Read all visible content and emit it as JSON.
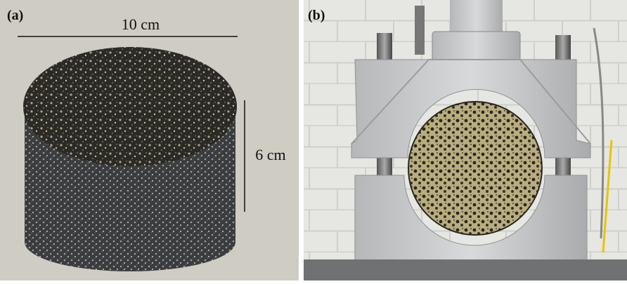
{
  "panels": [
    {
      "label": "(a)",
      "annotations": [
        "10 cm",
        "6 cm"
      ]
    },
    {
      "label": "(b)"
    }
  ]
}
